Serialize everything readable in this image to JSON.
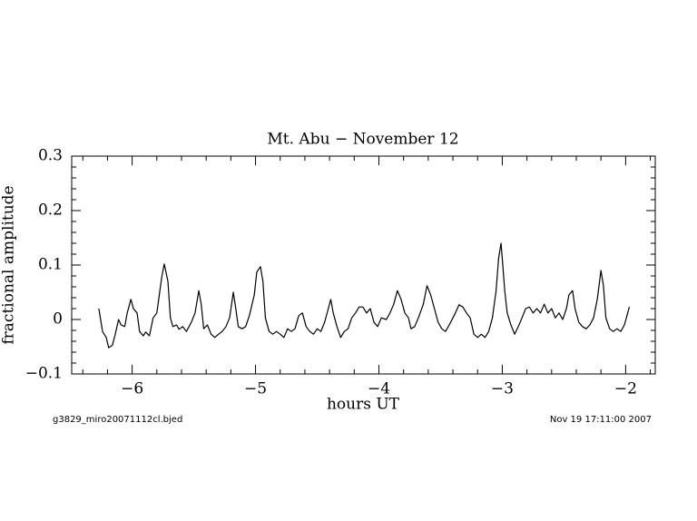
{
  "chart_data": {
    "type": "line",
    "title": "Mt. Abu − November 12",
    "xlabel": "hours UT",
    "ylabel": "fractional amplitude",
    "footer_left": "g3829_miro20071112cl.bjed",
    "footer_right": "Nov 19 17:11:00 2007",
    "color": "#000000",
    "xlim": [
      -6.49,
      -1.76
    ],
    "ylim": [
      -0.1,
      0.3
    ],
    "xticks": [
      {
        "value": -6,
        "label": "−6"
      },
      {
        "value": -5,
        "label": "−5"
      },
      {
        "value": -4,
        "label": "−4"
      },
      {
        "value": -3,
        "label": "−3"
      },
      {
        "value": -2,
        "label": "−2"
      }
    ],
    "yticks": [
      {
        "value": -0.1,
        "label": "−0.1"
      },
      0,
      0.1,
      0.2,
      0.3
    ],
    "xminorticks": [
      -6.4,
      -6.2,
      -5.8,
      -5.6,
      -5.4,
      -5.2,
      -4.8,
      -4.6,
      -4.4,
      -4.2,
      -3.8,
      -3.6,
      -3.4,
      -3.2,
      -2.8,
      -2.6,
      -2.4,
      -2.2,
      -1.8
    ],
    "yminorticks": [
      -0.08,
      -0.06,
      -0.04,
      -0.02,
      0.02,
      0.04,
      0.06,
      0.08,
      0.12,
      0.14,
      0.16,
      0.18,
      0.22,
      0.24,
      0.26,
      0.28
    ],
    "x": [
      -6.27,
      -6.24,
      -6.21,
      -6.19,
      -6.16,
      -6.14,
      -6.11,
      -6.09,
      -6.06,
      -6.04,
      -6.01,
      -5.99,
      -5.96,
      -5.94,
      -5.91,
      -5.89,
      -5.86,
      -5.83,
      -5.8,
      -5.78,
      -5.76,
      -5.74,
      -5.71,
      -5.69,
      -5.67,
      -5.64,
      -5.62,
      -5.59,
      -5.56,
      -5.52,
      -5.49,
      -5.46,
      -5.44,
      -5.42,
      -5.39,
      -5.36,
      -5.33,
      -5.3,
      -5.27,
      -5.24,
      -5.21,
      -5.18,
      -5.16,
      -5.14,
      -5.11,
      -5.08,
      -5.05,
      -5.01,
      -4.99,
      -4.96,
      -4.94,
      -4.92,
      -4.89,
      -4.86,
      -4.83,
      -4.8,
      -4.77,
      -4.74,
      -4.71,
      -4.68,
      -4.65,
      -4.62,
      -4.59,
      -4.56,
      -4.53,
      -4.5,
      -4.47,
      -4.44,
      -4.41,
      -4.39,
      -4.37,
      -4.34,
      -4.31,
      -4.28,
      -4.25,
      -4.22,
      -4.19,
      -4.16,
      -4.13,
      -4.1,
      -4.07,
      -4.04,
      -4.01,
      -3.98,
      -3.94,
      -3.91,
      -3.88,
      -3.85,
      -3.82,
      -3.79,
      -3.76,
      -3.74,
      -3.71,
      -3.68,
      -3.64,
      -3.61,
      -3.58,
      -3.55,
      -3.52,
      -3.49,
      -3.46,
      -3.43,
      -3.4,
      -3.38,
      -3.35,
      -3.32,
      -3.29,
      -3.26,
      -3.23,
      -3.2,
      -3.17,
      -3.14,
      -3.11,
      -3.08,
      -3.05,
      -3.03,
      -3.01,
      -3.0,
      -2.98,
      -2.96,
      -2.93,
      -2.9,
      -2.87,
      -2.84,
      -2.81,
      -2.78,
      -2.75,
      -2.72,
      -2.69,
      -2.66,
      -2.63,
      -2.6,
      -2.57,
      -2.54,
      -2.51,
      -2.48,
      -2.46,
      -2.43,
      -2.41,
      -2.38,
      -2.35,
      -2.32,
      -2.29,
      -2.26,
      -2.23,
      -2.2,
      -2.18,
      -2.16,
      -2.13,
      -2.1,
      -2.07,
      -2.04,
      -2.01,
      -1.97
    ],
    "values": [
      0.02,
      -0.022,
      -0.033,
      -0.052,
      -0.047,
      -0.03,
      0,
      -0.01,
      -0.013,
      0.012,
      0.037,
      0.02,
      0.012,
      -0.022,
      -0.03,
      -0.023,
      -0.03,
      0.003,
      0.012,
      0.045,
      0.078,
      0.102,
      0.07,
      0.003,
      -0.013,
      -0.01,
      -0.018,
      -0.013,
      -0.022,
      -0.005,
      0.012,
      0.053,
      0.028,
      -0.017,
      -0.01,
      -0.027,
      -0.033,
      -0.027,
      -0.022,
      -0.013,
      0.003,
      0.05,
      0.02,
      -0.013,
      -0.017,
      -0.013,
      0.007,
      0.045,
      0.087,
      0.097,
      0.07,
      0.003,
      -0.022,
      -0.027,
      -0.022,
      -0.027,
      -0.033,
      -0.017,
      -0.022,
      -0.017,
      0.007,
      0.012,
      -0.013,
      -0.022,
      -0.027,
      -0.017,
      -0.022,
      -0.005,
      0.02,
      0.037,
      0.012,
      -0.013,
      -0.033,
      -0.022,
      -0.017,
      0.003,
      0.012,
      0.023,
      0.023,
      0.012,
      0.02,
      -0.005,
      -0.013,
      0.003,
      0,
      0.012,
      0.028,
      0.053,
      0.037,
      0.012,
      0.003,
      -0.017,
      -0.013,
      0.003,
      0.028,
      0.062,
      0.045,
      0.02,
      -0.005,
      -0.017,
      -0.022,
      -0.01,
      0.003,
      0.012,
      0.027,
      0.023,
      0.012,
      0.003,
      -0.027,
      -0.033,
      -0.027,
      -0.033,
      -0.022,
      0.003,
      0.053,
      0.112,
      0.14,
      0.112,
      0.053,
      0.012,
      -0.01,
      -0.027,
      -0.013,
      0.003,
      0.02,
      0.023,
      0.012,
      0.02,
      0.012,
      0.028,
      0.012,
      0.02,
      0.003,
      0.012,
      0,
      0.02,
      0.045,
      0.053,
      0.02,
      -0.005,
      -0.013,
      -0.017,
      -0.01,
      0.003,
      0.037,
      0.09,
      0.062,
      0.003,
      -0.017,
      -0.022,
      -0.017,
      -0.022,
      -0.01,
      0.023
    ]
  }
}
